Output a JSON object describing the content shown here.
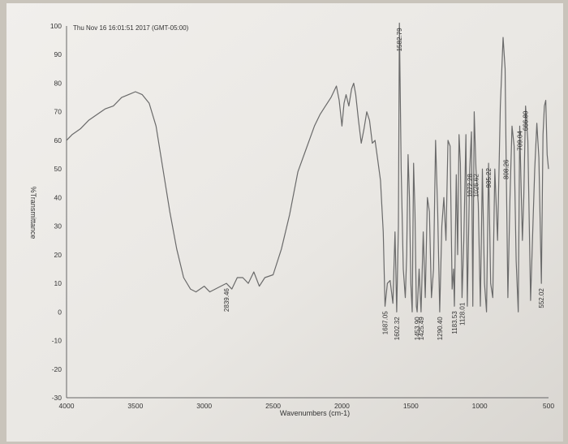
{
  "chart_data": {
    "type": "line",
    "timestamp": "Thu Nov 16 16:01:51 2017 (GMT-05:00)",
    "xlabel": "Wavenumbers (cm-1)",
    "ylabel": "%Transmittance",
    "xlim": [
      4000,
      500
    ],
    "ylim": [
      -30,
      100
    ],
    "x_ticks": [
      "4000",
      "3500",
      "3000",
      "2500",
      "2000",
      "1500",
      "1000",
      "500"
    ],
    "y_ticks": [
      "100",
      "90",
      "80",
      "70",
      "60",
      "50",
      "40",
      "30",
      "20",
      "10",
      "0",
      "-10",
      "-20",
      "-30"
    ],
    "grid": false,
    "line_color": "#6a6a6a",
    "series": [
      {
        "x": [
          4000,
          3960,
          3900,
          3840,
          3780,
          3720,
          3660,
          3600,
          3550,
          3500,
          3450,
          3400,
          3350,
          3300,
          3250,
          3200,
          3150,
          3100,
          3060,
          3000,
          2960,
          2920,
          2880,
          2839.46,
          2800,
          2760,
          2720,
          2680,
          2640,
          2600,
          2560,
          2500,
          2440,
          2380,
          2320,
          2260,
          2200,
          2160,
          2120,
          2080,
          2040,
          2020,
          2000,
          1985,
          1970,
          1950,
          1930,
          1915,
          1900,
          1880,
          1860,
          1840,
          1820,
          1800,
          1780,
          1760,
          1740,
          1720,
          1700,
          1687.05,
          1670,
          1650,
          1630,
          1615,
          1602.32,
          1590,
          1582.79,
          1570,
          1555,
          1540,
          1530,
          1520,
          1510,
          1500,
          1490,
          1480,
          1470,
          1460,
          1453.9,
          1440,
          1425.49,
          1410,
          1395,
          1380,
          1365,
          1350,
          1335,
          1320,
          1305,
          1290.4,
          1275,
          1260,
          1245,
          1230,
          1215,
          1200,
          1190,
          1183.53,
          1170,
          1160,
          1150,
          1140,
          1128.01,
          1115,
          1100,
          1090,
          1072.28,
          1060,
          1050,
          1040,
          1026.62,
          1010,
          995,
          980,
          965,
          950,
          935.22,
          920,
          905,
          890,
          870,
          850,
          830,
          815,
          808.26,
          795,
          780,
          765,
          750,
          735,
          720,
          709.04,
          700,
          690,
          680,
          666.8,
          650,
          630,
          610,
          600,
          585,
          570,
          552.02,
          540,
          530,
          520,
          510,
          500
        ],
        "y": [
          60,
          62,
          64,
          67,
          69,
          71,
          72,
          75,
          76,
          77,
          76,
          73,
          65,
          50,
          35,
          22,
          12,
          8,
          7,
          9,
          7,
          8,
          9,
          10,
          8,
          12,
          12,
          10,
          14,
          9,
          12,
          13,
          22,
          34,
          49,
          57,
          65,
          69,
          72,
          75,
          79,
          74,
          65,
          73,
          76,
          72,
          78,
          80,
          76,
          67,
          59,
          64,
          70,
          67,
          59,
          60,
          53,
          46,
          28,
          2,
          10,
          11,
          3,
          28,
          0,
          30,
          101,
          50,
          15,
          5,
          20,
          55,
          40,
          10,
          0,
          52,
          35,
          2,
          0,
          15,
          0,
          28,
          5,
          40,
          35,
          5,
          15,
          60,
          35,
          0,
          30,
          40,
          25,
          60,
          58,
          8,
          15,
          2,
          48,
          20,
          62,
          52,
          5,
          25,
          62,
          2,
          50,
          63,
          2,
          70,
          50,
          38,
          2,
          50,
          10,
          0,
          52,
          10,
          5,
          50,
          25,
          72,
          96,
          85,
          55,
          5,
          40,
          65,
          58,
          18,
          0,
          65,
          45,
          25,
          40,
          72,
          60,
          4,
          35,
          50,
          66,
          54,
          10,
          62,
          72,
          74,
          55,
          50
        ]
      }
    ],
    "peak_labels": [
      "2839.46",
      "1687.05",
      "1602.32",
      "1582.79",
      "1453.90",
      "1425.49",
      "1290.40",
      "1183.53",
      "1128.01",
      "1072.28",
      "1026.62",
      "935.22",
      "808.26",
      "709.04",
      "666.80",
      "552.02"
    ]
  }
}
